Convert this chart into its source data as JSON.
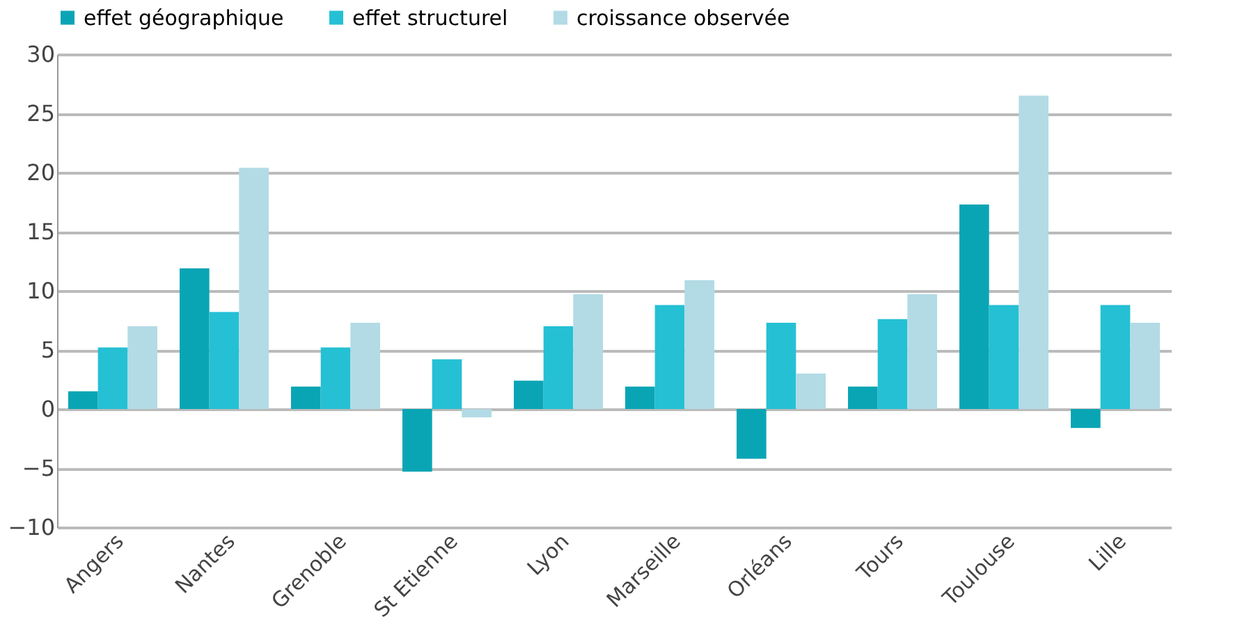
{
  "chart_data": {
    "type": "bar",
    "categories": [
      "Angers",
      "Nantes",
      "Grenoble",
      "St Etienne",
      "Lyon",
      "Marseille",
      "Orléans",
      "Tours",
      "Toulouse",
      "Lille"
    ],
    "series": [
      {
        "name": "effet géographique",
        "color": "#0aa5b5",
        "values": [
          1.5,
          11.9,
          1.9,
          -5.3,
          2.4,
          1.9,
          -4.2,
          1.9,
          17.3,
          -1.6
        ]
      },
      {
        "name": "effet structurel",
        "color": "#25c0d4",
        "values": [
          5.2,
          8.2,
          5.2,
          4.2,
          7.0,
          8.8,
          7.3,
          7.6,
          8.8,
          8.8
        ]
      },
      {
        "name": "croissance observée",
        "color": "#b2dbe5",
        "values": [
          7.0,
          20.4,
          7.3,
          -0.7,
          9.7,
          10.9,
          3.0,
          9.7,
          26.5,
          7.3
        ]
      }
    ],
    "ylim": [
      -10,
      30
    ],
    "yticks": [
      -10,
      -5,
      0,
      5,
      10,
      15,
      20,
      25,
      30
    ],
    "grid": "y",
    "legend": "top"
  }
}
